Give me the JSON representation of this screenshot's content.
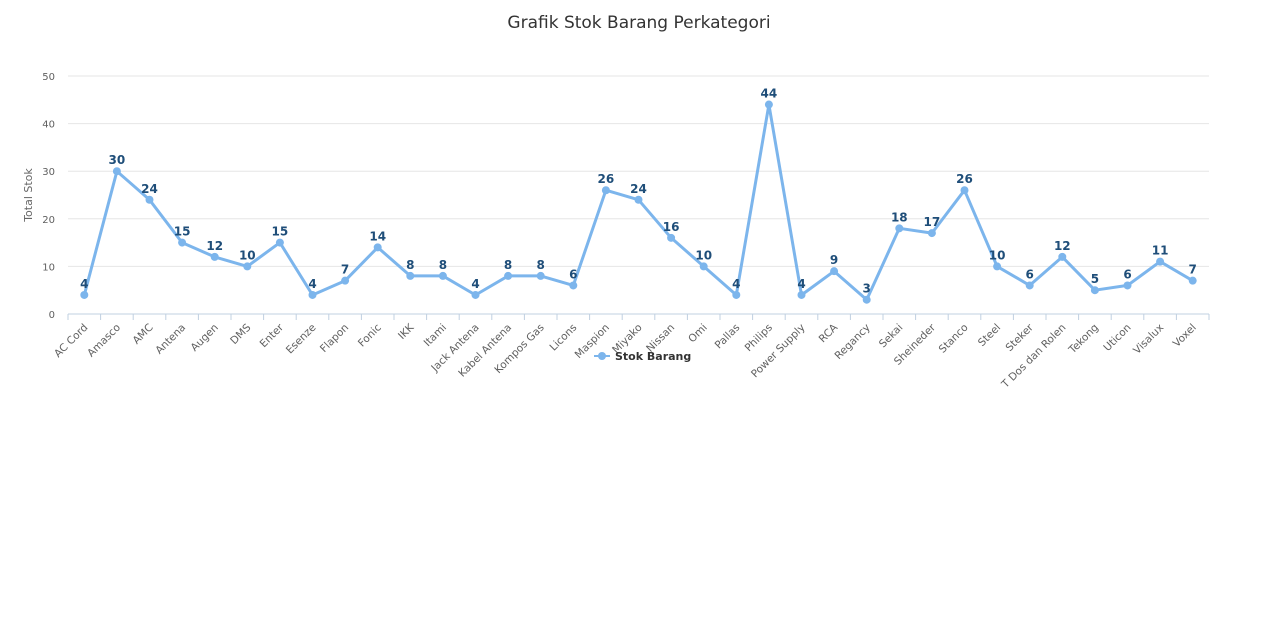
{
  "chart_data": {
    "type": "line",
    "title": "Grafik Stok Barang Perkategori",
    "xlabel": "",
    "ylabel": "Total Stok",
    "ylim": [
      0,
      50
    ],
    "yticks": [
      "0",
      "10",
      "20",
      "30",
      "40",
      "50"
    ],
    "grid": true,
    "legend_position": "bottom-center",
    "categories": [
      "AC Cord",
      "Amasco",
      "AMC",
      "Antena",
      "Augen",
      "DMS",
      "Enter",
      "Esenze",
      "Flapon",
      "Fonic",
      "IKK",
      "Itami",
      "Jack Antena",
      "Kabel Antena",
      "Kompos Gas",
      "Licons",
      "Maspion",
      "Miyako",
      "Nissan",
      "Omi",
      "Pallas",
      "Philips",
      "Power Supply",
      "RCA",
      "Regancy",
      "Sekai",
      "Sheineder",
      "Stanco",
      "Steel",
      "Steker",
      "T Dos dan Rolen",
      "Tekong",
      "Uticon",
      "Visalux",
      "Voxel"
    ],
    "series": [
      {
        "name": "Stok Barang",
        "color": "#7cb5ec",
        "values": [
          4,
          30,
          24,
          15,
          12,
          10,
          15,
          4,
          7,
          14,
          8,
          8,
          4,
          8,
          8,
          6,
          26,
          24,
          16,
          10,
          4,
          44,
          4,
          9,
          3,
          18,
          17,
          26,
          10,
          6,
          12,
          5,
          6,
          11,
          7
        ]
      }
    ]
  }
}
